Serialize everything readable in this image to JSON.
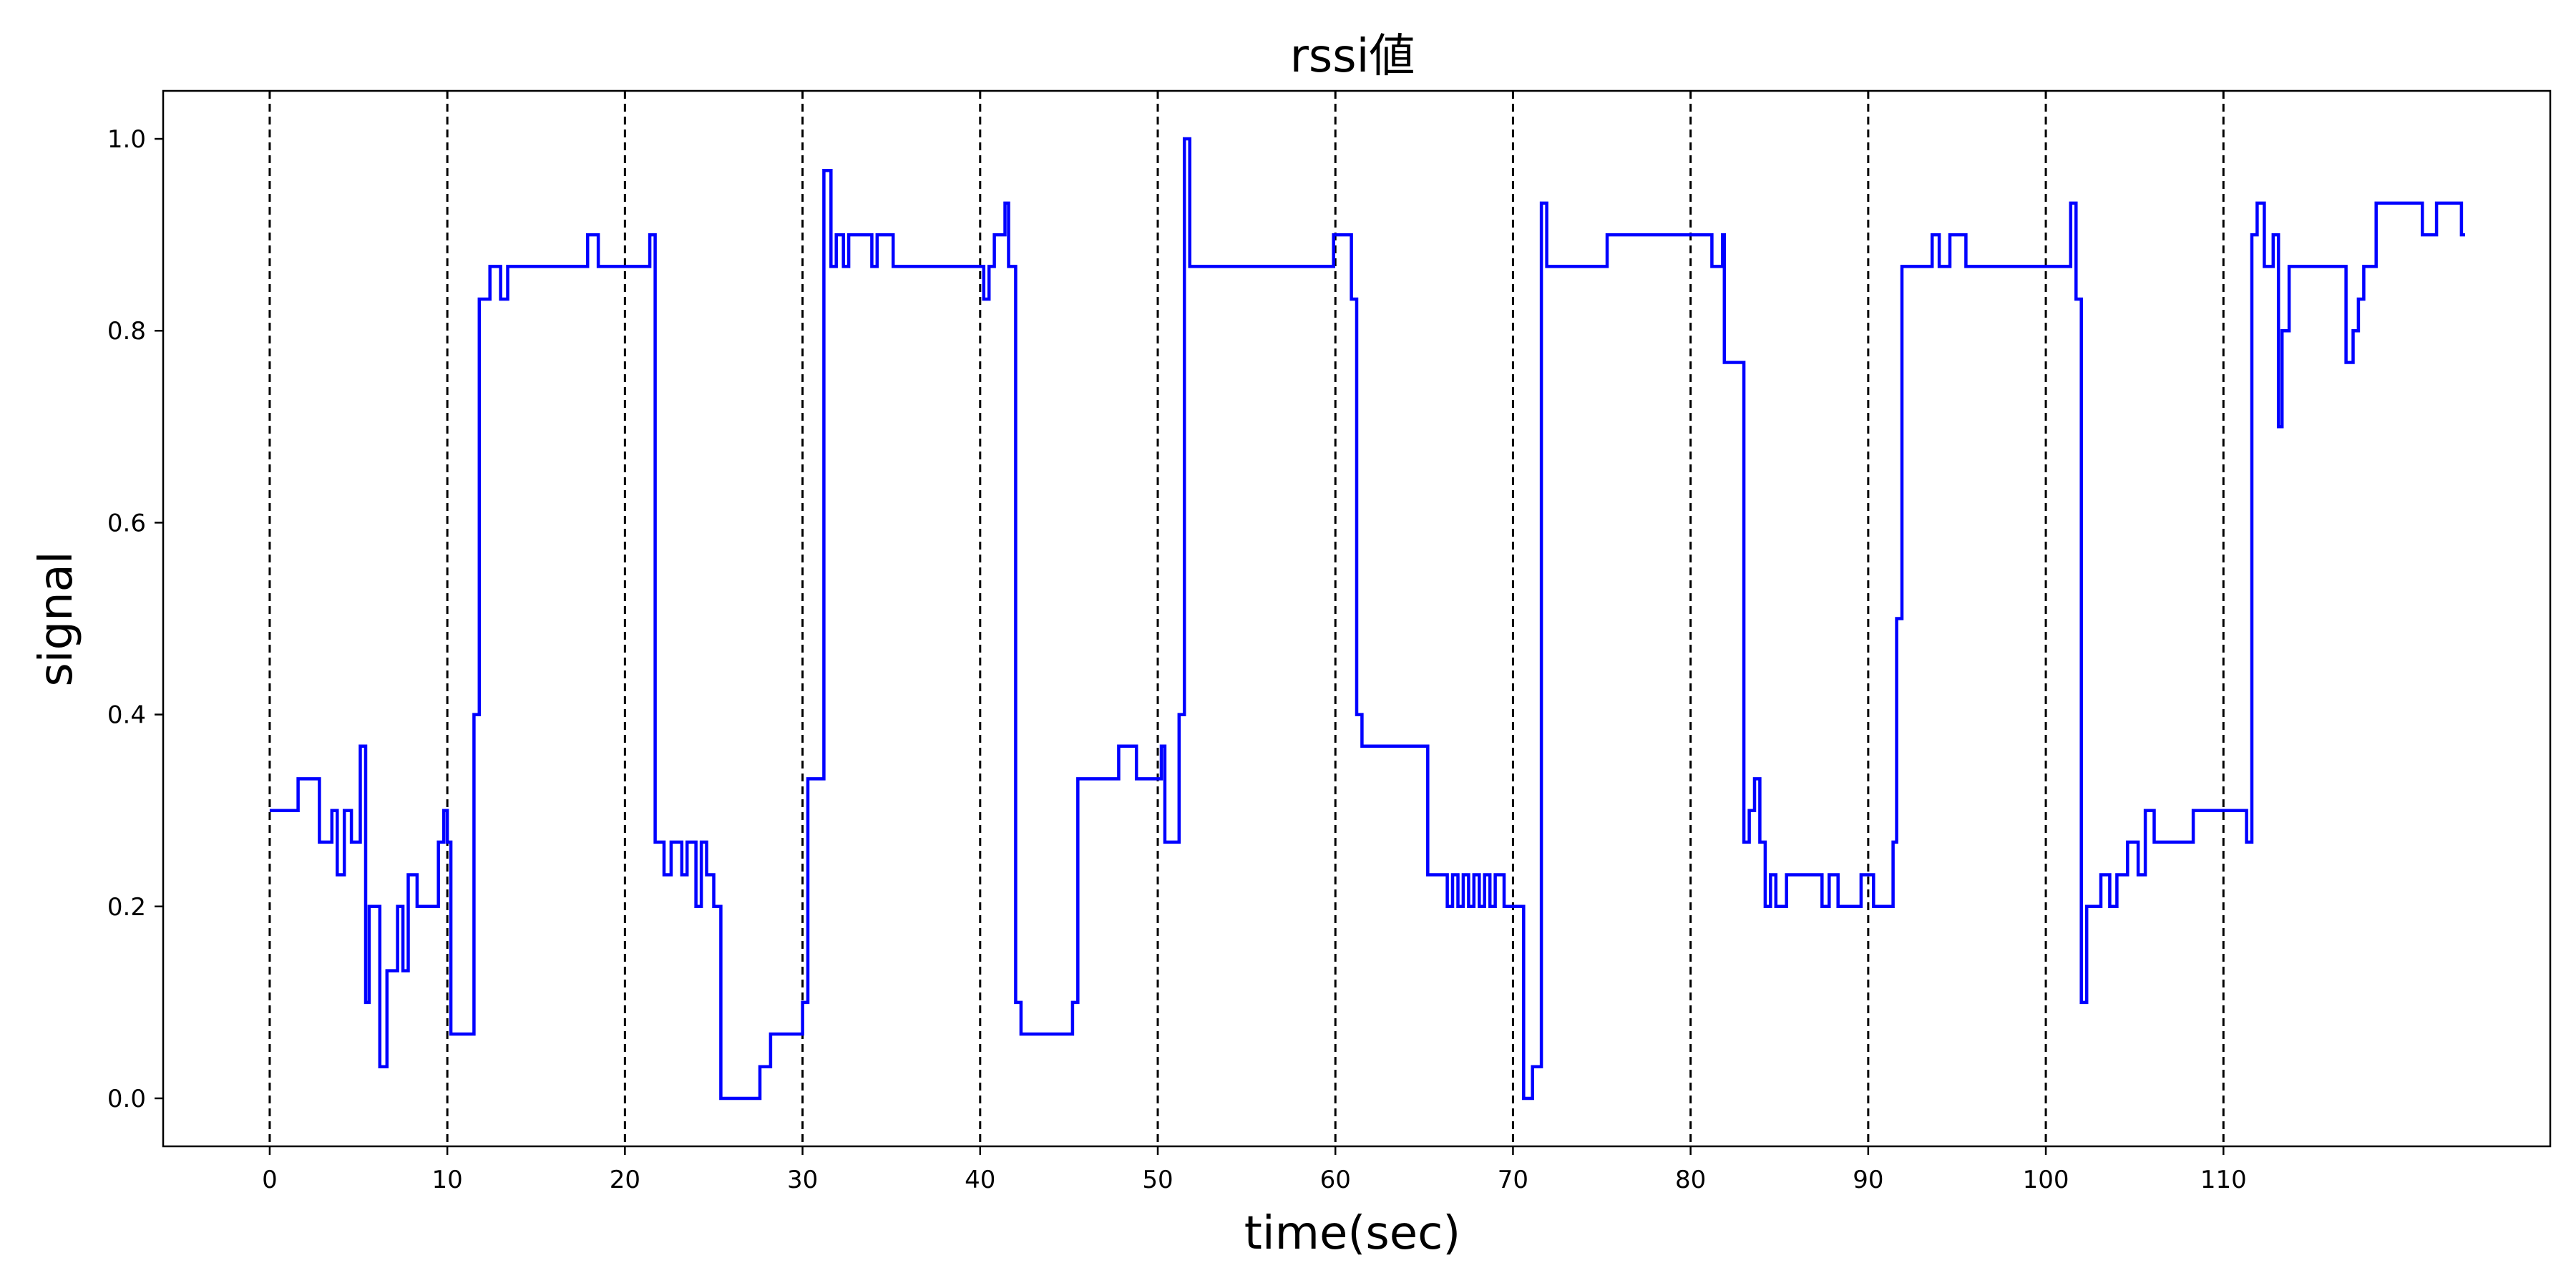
{
  "chart_data": {
    "type": "line",
    "title": "rssi値",
    "xlabel": "time(sec)",
    "ylabel": "signal",
    "xlim": [
      -6,
      128.4
    ],
    "ylim": [
      -0.05,
      1.05
    ],
    "xticks": [
      0,
      10,
      20,
      30,
      40,
      50,
      60,
      70,
      80,
      90,
      100,
      110
    ],
    "yticks": [
      0.0,
      0.2,
      0.4,
      0.6,
      0.8,
      1.0
    ],
    "vlines": [
      0,
      10,
      20,
      30,
      40,
      50,
      60,
      70,
      80,
      90,
      100,
      110
    ],
    "vline_color": "#000000",
    "grid": false,
    "legend": "none",
    "series": [
      {
        "color": "#0000ff",
        "step": "post",
        "x": [
          0,
          1.6,
          2.8,
          3.5,
          3.8,
          4.2,
          4.6,
          5.1,
          5.4,
          5.6,
          6.2,
          6.6,
          7.2,
          7.5,
          7.8,
          8.3,
          9.5,
          9.8,
          10.0,
          10.2,
          11.5,
          11.8,
          12.4,
          13.0,
          13.4,
          17.9,
          18.5,
          21.4,
          21.7,
          22.2,
          22.6,
          23.2,
          23.5,
          24.0,
          24.3,
          24.6,
          25.0,
          25.4,
          27.6,
          28.2,
          30.0,
          30.3,
          31.2,
          31.6,
          31.9,
          32.3,
          32.6,
          33.9,
          34.2,
          35.1,
          40.2,
          40.5,
          40.8,
          41.4,
          41.6,
          42.0,
          42.3,
          45.2,
          45.5,
          47.8,
          48.8,
          50.2,
          50.4,
          51.2,
          51.5,
          51.8,
          59.9,
          60.9,
          61.2,
          61.5,
          61.8,
          65.2,
          66.3,
          66.6,
          66.9,
          67.2,
          67.5,
          67.8,
          68.1,
          68.4,
          68.7,
          69.0,
          69.5,
          70.0,
          70.6,
          71.1,
          71.6,
          71.9,
          75.3,
          81.2,
          81.4,
          81.8,
          81.9,
          82.3,
          83.0,
          83.3,
          83.6,
          83.9,
          84.2,
          84.5,
          84.8,
          85.4,
          87.4,
          87.8,
          88.3,
          89.6,
          90.3,
          91.4,
          91.6,
          91.9,
          93.6,
          94.0,
          94.6,
          95.5,
          101.4,
          101.7,
          102.0,
          102.3,
          103.1,
          103.6,
          104.0,
          104.6,
          105.2,
          105.6,
          106.1,
          108.3,
          111.3,
          111.6,
          111.9,
          112.3,
          112.8,
          113.1,
          113.3,
          113.7,
          116.7,
          116.9,
          117.3,
          117.6,
          117.9,
          118.6,
          119.8,
          121.2,
          122.0,
          122.6,
          123.4,
          123.6
        ],
        "y": [
          0.3,
          0.333,
          0.267,
          0.3,
          0.233,
          0.3,
          0.267,
          0.367,
          0.1,
          0.2,
          0.033,
          0.133,
          0.2,
          0.133,
          0.233,
          0.2,
          0.267,
          0.3,
          0.267,
          0.067,
          0.4,
          0.833,
          0.867,
          0.833,
          0.867,
          0.9,
          0.867,
          0.9,
          0.267,
          0.233,
          0.267,
          0.233,
          0.267,
          0.2,
          0.267,
          0.233,
          0.2,
          0.0,
          0.033,
          0.067,
          0.1,
          0.333,
          0.967,
          0.867,
          0.9,
          0.867,
          0.9,
          0.867,
          0.9,
          0.867,
          0.833,
          0.867,
          0.9,
          0.933,
          0.867,
          0.1,
          0.067,
          0.1,
          0.333,
          0.367,
          0.333,
          0.367,
          0.267,
          0.4,
          1.0,
          0.867,
          0.9,
          0.833,
          0.4,
          0.367,
          0.367,
          0.233,
          0.2,
          0.233,
          0.2,
          0.233,
          0.2,
          0.233,
          0.2,
          0.233,
          0.2,
          0.233,
          0.2,
          0.2,
          0.0,
          0.033,
          0.933,
          0.867,
          0.9,
          0.867,
          0.867,
          0.9,
          0.767,
          0.767,
          0.267,
          0.3,
          0.333,
          0.267,
          0.2,
          0.233,
          0.2,
          0.233,
          0.2,
          0.233,
          0.2,
          0.233,
          0.2,
          0.267,
          0.5,
          0.867,
          0.9,
          0.867,
          0.9,
          0.867,
          0.933,
          0.833,
          0.1,
          0.2,
          0.233,
          0.2,
          0.233,
          0.267,
          0.233,
          0.3,
          0.267,
          0.3,
          0.267,
          0.9,
          0.933,
          0.867,
          0.9,
          0.7,
          0.8,
          0.867,
          0.867,
          0.767,
          0.8,
          0.833,
          0.867,
          0.933,
          0.933,
          0.9,
          0.933,
          0.933,
          0.9,
          0.9
        ]
      }
    ]
  }
}
